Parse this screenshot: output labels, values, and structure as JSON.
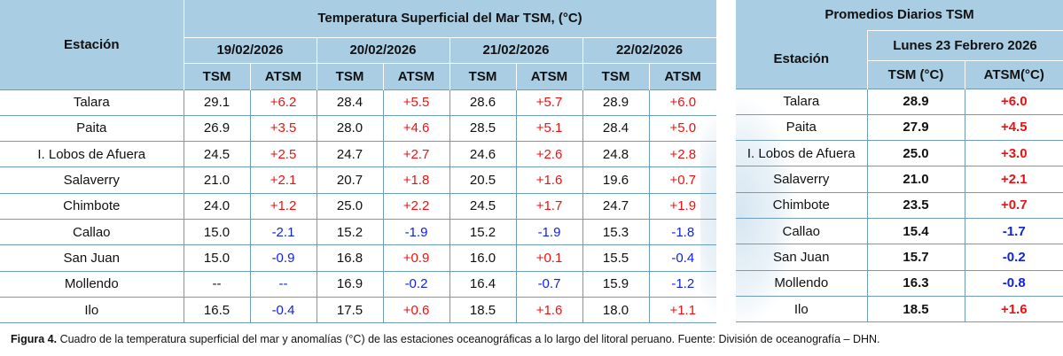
{
  "main_table": {
    "title": "Temperatura Superficial del Mar TSM, (°C)",
    "station_header": "Estación",
    "dates": [
      "19/02/2026",
      "20/02/2026",
      "21/02/2026",
      "22/02/2026"
    ],
    "col_tsm": "TSM",
    "col_atsm": "ATSM",
    "rows": [
      {
        "station": "Talara",
        "v": [
          [
            "29.1",
            "+6.2"
          ],
          [
            "28.4",
            "+5.5"
          ],
          [
            "28.6",
            "+5.7"
          ],
          [
            "28.9",
            "+6.0"
          ]
        ]
      },
      {
        "station": "Paita",
        "v": [
          [
            "26.9",
            "+3.5"
          ],
          [
            "28.0",
            "+4.6"
          ],
          [
            "28.5",
            "+5.1"
          ],
          [
            "28.4",
            "+5.0"
          ]
        ]
      },
      {
        "station": "I. Lobos de Afuera",
        "v": [
          [
            "24.5",
            "+2.5"
          ],
          [
            "24.7",
            "+2.7"
          ],
          [
            "24.6",
            "+2.6"
          ],
          [
            "24.8",
            "+2.8"
          ]
        ]
      },
      {
        "station": "Salaverry",
        "v": [
          [
            "21.0",
            "+2.1"
          ],
          [
            "20.7",
            "+1.8"
          ],
          [
            "20.5",
            "+1.6"
          ],
          [
            "19.6",
            "+0.7"
          ]
        ]
      },
      {
        "station": "Chimbote",
        "v": [
          [
            "24.0",
            "+1.2"
          ],
          [
            "25.0",
            "+2.2"
          ],
          [
            "24.5",
            "+1.7"
          ],
          [
            "24.7",
            "+1.9"
          ]
        ]
      },
      {
        "station": "Callao",
        "v": [
          [
            "15.0",
            "-2.1"
          ],
          [
            "15.2",
            "-1.9"
          ],
          [
            "15.2",
            "-1.9"
          ],
          [
            "15.3",
            "-1.8"
          ]
        ]
      },
      {
        "station": "San Juan",
        "v": [
          [
            "15.0",
            "-0.9"
          ],
          [
            "16.8",
            "+0.9"
          ],
          [
            "16.0",
            "+0.1"
          ],
          [
            "15.5",
            "-0.4"
          ]
        ]
      },
      {
        "station": "Mollendo",
        "v": [
          [
            "--",
            "--"
          ],
          [
            "16.9",
            "-0.2"
          ],
          [
            "16.4",
            "-0.7"
          ],
          [
            "15.9",
            "-1.2"
          ]
        ]
      },
      {
        "station": "Ilo",
        "v": [
          [
            "16.5",
            "-0.4"
          ],
          [
            "17.5",
            "+0.6"
          ],
          [
            "18.5",
            "+1.6"
          ],
          [
            "18.0",
            "+1.1"
          ]
        ]
      }
    ]
  },
  "averages_table": {
    "title": "Promedios Diarios TSM",
    "date_label": "Lunes 23 Febrero 2026",
    "station_header": "Estación",
    "col_tsm": "TSM (°C)",
    "col_atsm": "ATSM(°C)",
    "rows": [
      {
        "station": "Talara",
        "tsm": "28.9",
        "atsm": "+6.0"
      },
      {
        "station": "Paita",
        "tsm": "27.9",
        "atsm": "+4.5"
      },
      {
        "station": "I. Lobos de Afuera",
        "tsm": "25.0",
        "atsm": "+3.0"
      },
      {
        "station": "Salaverry",
        "tsm": "21.0",
        "atsm": "+2.1"
      },
      {
        "station": "Chimbote",
        "tsm": "23.5",
        "atsm": "+0.7"
      },
      {
        "station": "Callao",
        "tsm": "15.4",
        "atsm": "-1.7"
      },
      {
        "station": "San Juan",
        "tsm": "15.7",
        "atsm": "-0.2"
      },
      {
        "station": "Mollendo",
        "tsm": "16.3",
        "atsm": "-0.8"
      },
      {
        "station": "Ilo",
        "tsm": "18.5",
        "atsm": "+1.6"
      }
    ]
  },
  "caption": {
    "label": "Figura 4.",
    "text": " Cuadro de la temperatura superficial del mar y anomalías (°C) de las estaciones oceanográficas a lo largo del litoral peruano. Fuente: División de oceanografía – DHN."
  },
  "colors": {
    "header_bg": "#a9cde3",
    "positive": "#ee1111",
    "negative": "#1122dd",
    "grid": "#6f9cbd"
  }
}
